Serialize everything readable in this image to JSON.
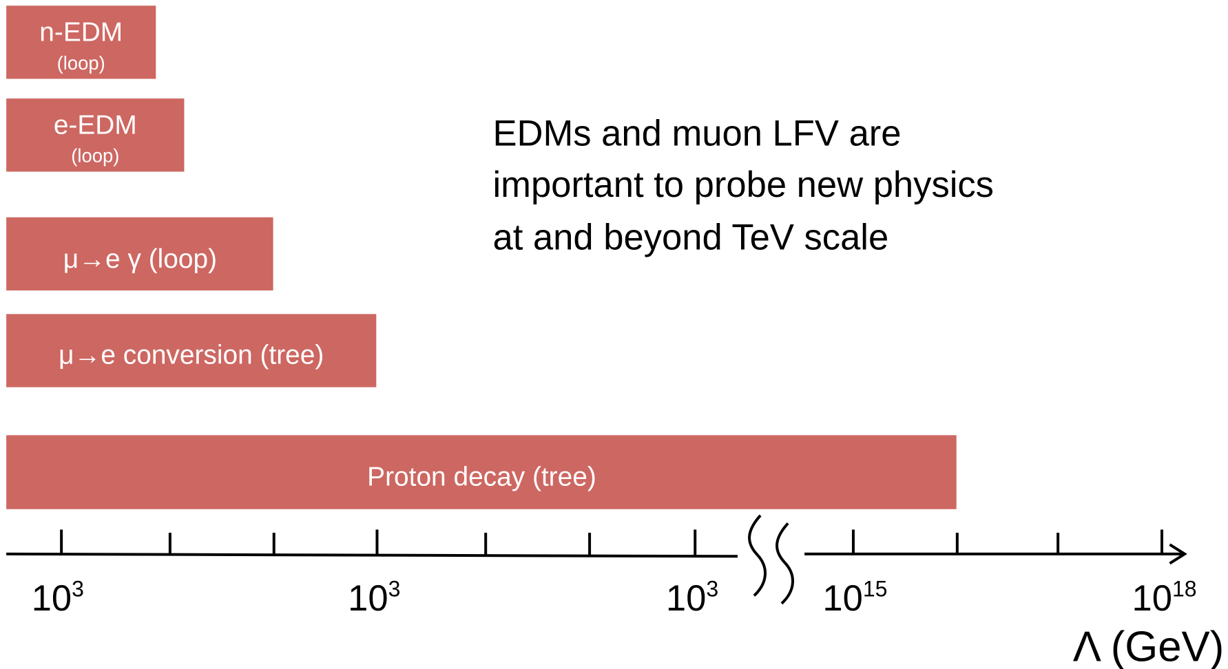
{
  "processes": [
    {
      "label": "n-EDM",
      "sublabel": "(loop)"
    },
    {
      "label": "e-EDM",
      "sublabel": "(loop)"
    },
    {
      "label": "μ→e γ (loop)"
    },
    {
      "label": "μ→e conversion (tree)"
    },
    {
      "label": "Proton decay (tree)"
    }
  ],
  "axis": {
    "tick_labels": [
      {
        "base": "10",
        "exp": "3"
      },
      {
        "base": "10",
        "exp": "3"
      },
      {
        "base": "10",
        "exp": "3"
      },
      {
        "base": "10",
        "exp": "15"
      },
      {
        "base": "10",
        "exp": "18"
      }
    ],
    "title": "Λ (GeV)"
  },
  "statement": [
    "EDMs and muon LFV are",
    "important to probe new physics",
    "at and beyond TeV scale"
  ]
}
